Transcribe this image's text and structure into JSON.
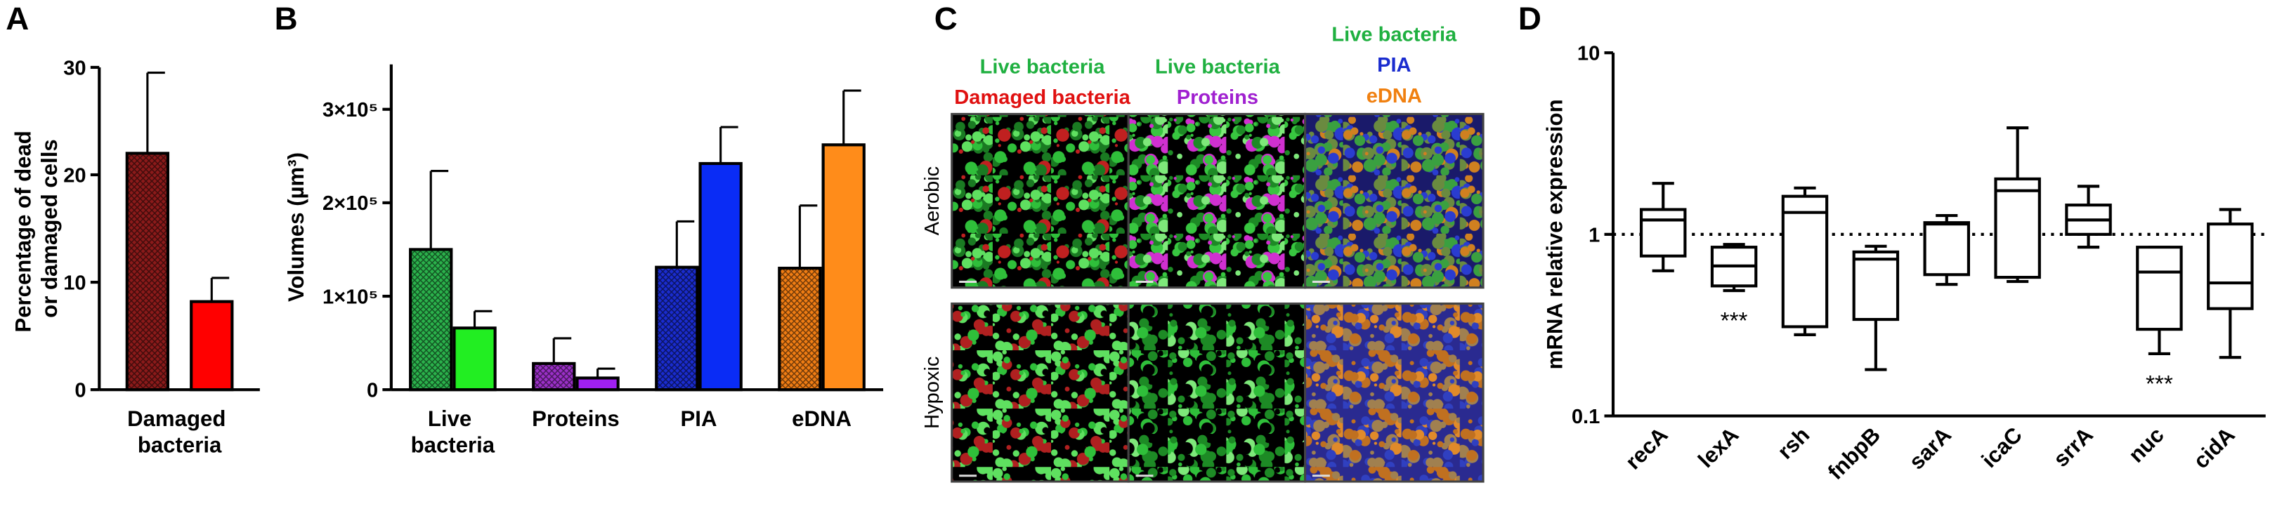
{
  "chart_data": [
    {
      "panel": "A",
      "type": "bar",
      "ylabel": "Percentage of dead or damaged cells",
      "categories": [
        "Damaged bacteria"
      ],
      "series": [
        {
          "color": "#8b1a1a",
          "hatch": true,
          "values": [
            22
          ],
          "errors": [
            7.5
          ]
        },
        {
          "color": "#ff0000",
          "hatch": false,
          "values": [
            8.2
          ],
          "errors": [
            2.2
          ]
        }
      ],
      "ylim": [
        0,
        30
      ],
      "yticks": [
        0,
        10,
        20,
        30
      ]
    },
    {
      "panel": "B",
      "type": "bar",
      "ylabel": "Volumes (µm³)",
      "categories": [
        "Live bacteria",
        "Proteins",
        "PIA",
        "eDNA"
      ],
      "series": [
        {
          "colors": [
            "#2bb24c",
            "#9b30c8",
            "#1a2ccf",
            "#f07d14"
          ],
          "hatch": true,
          "values": [
            150000,
            28000,
            131000,
            130000
          ],
          "errors": [
            84000,
            27000,
            49000,
            67000
          ]
        },
        {
          "colors": [
            "#22ee22",
            "#a020f0",
            "#0a2cf5",
            "#ff8c1a"
          ],
          "hatch": false,
          "values": [
            66000,
            12500,
            242000,
            262000
          ],
          "errors": [
            18000,
            10000,
            39000,
            58000
          ]
        }
      ],
      "ylim": [
        0,
        348000
      ],
      "yticks": [
        0,
        {
          "value": 100000,
          "label": "1×10⁵"
        },
        {
          "value": 200000,
          "label": "2×10⁵"
        },
        {
          "value": 300000,
          "label": "3×10⁵"
        }
      ]
    },
    {
      "panel": "D",
      "type": "box",
      "ylabel": "mRNA relative expression",
      "categories": [
        "recA",
        "lexA",
        "rsh",
        "fnbpB",
        "sarA",
        "icaC",
        "srrA",
        "nuc",
        "cidA"
      ],
      "boxes": [
        {
          "min": 0.63,
          "q1": 0.76,
          "median": 1.2,
          "q3": 1.37,
          "max": 1.91
        },
        {
          "min": 0.49,
          "q1": 0.52,
          "median": 0.67,
          "q3": 0.85,
          "max": 0.88
        },
        {
          "min": 0.28,
          "q1": 0.31,
          "median": 1.32,
          "q3": 1.62,
          "max": 1.8
        },
        {
          "min": 0.18,
          "q1": 0.34,
          "median": 0.73,
          "q3": 0.8,
          "max": 0.86
        },
        {
          "min": 0.53,
          "q1": 0.6,
          "median": 1.14,
          "q3": 1.16,
          "max": 1.27
        },
        {
          "min": 0.55,
          "q1": 0.58,
          "median": 1.74,
          "q3": 2.02,
          "max": 3.86
        },
        {
          "min": 0.85,
          "q1": 1.0,
          "median": 1.2,
          "q3": 1.45,
          "max": 1.84
        },
        {
          "min": 0.22,
          "q1": 0.3,
          "median": 0.62,
          "q3": 0.85,
          "max": 0.85
        },
        {
          "min": 0.21,
          "q1": 0.39,
          "median": 0.54,
          "q3": 1.14,
          "max": 1.37
        }
      ],
      "log_scale": true,
      "ylim": [
        0.1,
        10
      ],
      "yticks": [
        {
          "value": 0.1,
          "label": "0.1"
        },
        1,
        10
      ],
      "reference_line": 1,
      "annotations": [
        {
          "text": "***",
          "category": "lexA"
        },
        {
          "text": "***",
          "category": "nuc"
        }
      ]
    }
  ],
  "image_panel": {
    "panel": "C",
    "column_headers": [
      [
        {
          "text": "Live bacteria",
          "color": "#1fb040"
        },
        {
          "text": "Damaged bacteria",
          "color": "#e01010"
        }
      ],
      [
        {
          "text": "Live bacteria",
          "color": "#1fb040"
        },
        {
          "text": "Proteins",
          "color": "#a020d0"
        }
      ],
      [
        {
          "text": "Live bacteria",
          "color": "#1fb040"
        },
        {
          "text": "PIA",
          "color": "#1a2ccf"
        },
        {
          "text": "eDNA",
          "color": "#f08010"
        }
      ]
    ],
    "row_labels": [
      "Aerobic",
      "Hypoxic"
    ]
  }
}
